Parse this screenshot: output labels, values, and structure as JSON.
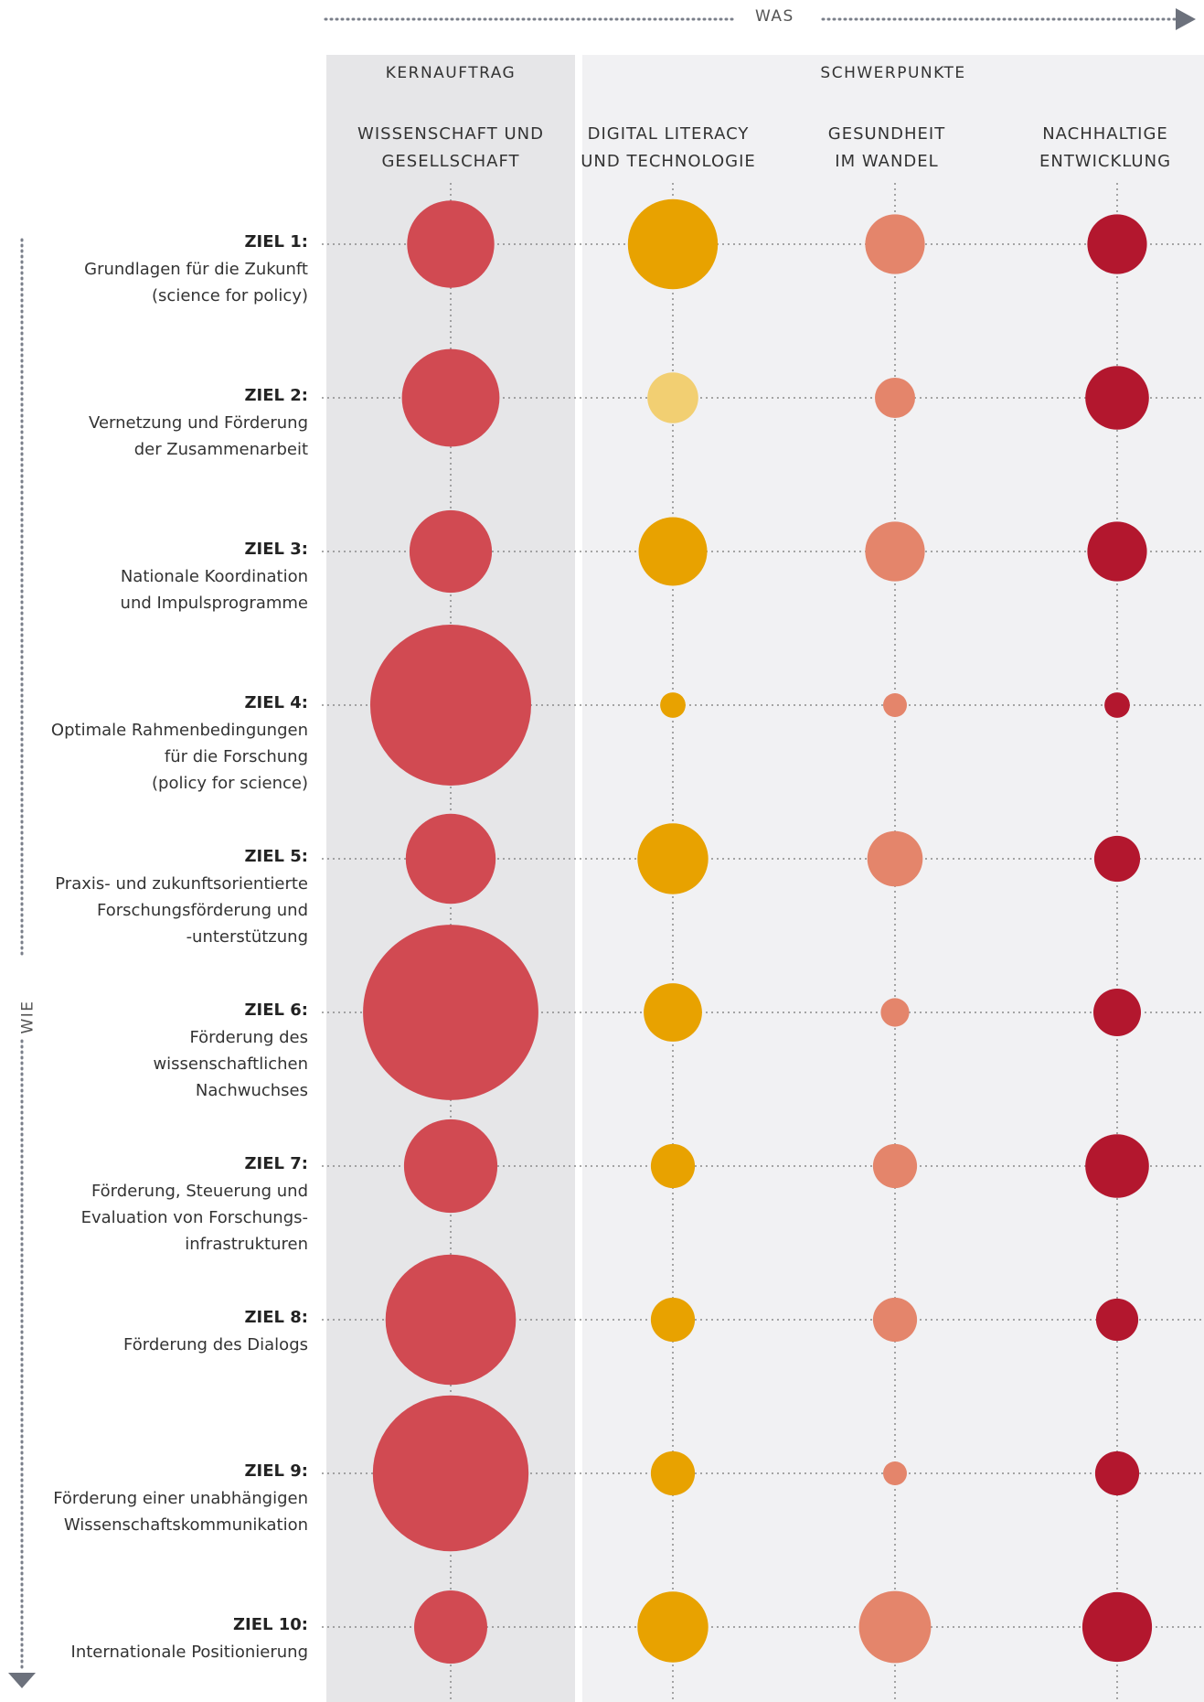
{
  "header": {
    "was_label": "WAS",
    "wie_label": "WIE"
  },
  "groups": {
    "kern": "KERNAUFTRAG",
    "schwer": "SCHWERPUNKTE"
  },
  "chart_data": {
    "type": "bubble-matrix",
    "columns": [
      {
        "label": "WISSENSCHAFT UND\nGESELLSCHAFT",
        "group": "KERNAUFTRAG",
        "color": "#d14a52"
      },
      {
        "label": "DIGITAL LITERACY\nUND TECHNOLOGIE",
        "group": "SCHWERPUNKTE",
        "color": "#e8a200"
      },
      {
        "label": "GESUNDHEIT\nIM WANDEL",
        "group": "SCHWERPUNKTE",
        "color": "#e4856b"
      },
      {
        "label": "NACHHALTIGE\nENTWICKLUNG",
        "group": "SCHWERPUNKTE",
        "color": "#b3172e"
      }
    ],
    "rows": [
      {
        "title": "ZIEL 1:",
        "desc": "Grundlagen für die Zukunft\n(science for policy)"
      },
      {
        "title": "ZIEL 2:",
        "desc": "Vernetzung und Förderung\nder Zusammenarbeit"
      },
      {
        "title": "ZIEL 3:",
        "desc": "Nationale Koordination\nund Impulsprogramme"
      },
      {
        "title": "ZIEL 4:",
        "desc": "Optimale Rahmenbedingungen\nfür die Forschung\n(policy for science)"
      },
      {
        "title": "ZIEL 5:",
        "desc": "Praxis- und zukunftsorientierte\nForschungsförderung und\n-unterstützung"
      },
      {
        "title": "ZIEL 6:",
        "desc": "Förderung des\nwissenschaftlichen\nNachwuchses"
      },
      {
        "title": "ZIEL 7:",
        "desc": "Förderung, Steuerung und\nEvaluation von Forschungs-\ninfrastrukturen"
      },
      {
        "title": "ZIEL 8:",
        "desc": "Förderung des Dialogs"
      },
      {
        "title": "ZIEL 9:",
        "desc": "Förderung einer unabhängigen\nWissenschaftskommunikation"
      },
      {
        "title": "ZIEL 10:",
        "desc": "Internationale Positionierung"
      }
    ],
    "values": [
      [
        4.7,
        5.0,
        2.2,
        2.2
      ],
      [
        5.9,
        1.6,
        1.0,
        2.5
      ],
      [
        4.2,
        2.9,
        2.2,
        2.2
      ],
      [
        16.0,
        0.4,
        0.35,
        0.4
      ],
      [
        5.0,
        3.1,
        1.9,
        1.3
      ],
      [
        19.0,
        2.1,
        0.5,
        1.4
      ],
      [
        5.4,
        1.2,
        1.2,
        2.5
      ],
      [
        10.5,
        1.2,
        1.2,
        1.1
      ],
      [
        15.0,
        1.2,
        0.35,
        1.2
      ],
      [
        3.3,
        3.1,
        3.2,
        3.0
      ]
    ],
    "notes": "Bubble area proportional to value (relative units); no axis scale printed."
  }
}
